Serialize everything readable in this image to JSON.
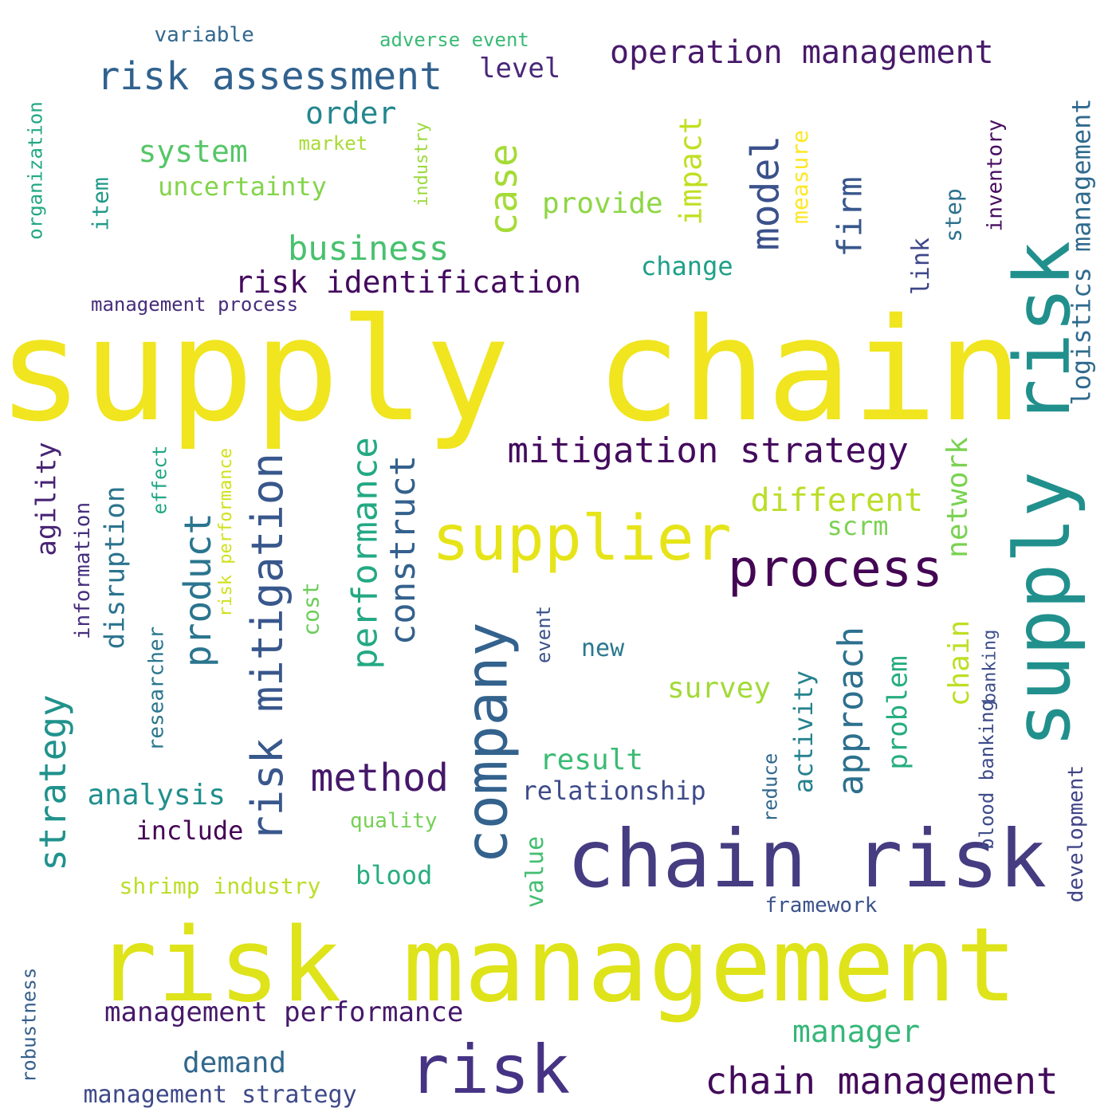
{
  "words": [
    {
      "text": "supply chain",
      "color": "#f0e51f"
    },
    {
      "text": "risk management",
      "color": "#dfe31a"
    },
    {
      "text": "chain risk",
      "color": "#453c81"
    },
    {
      "text": "supply risk",
      "color": "#21908d"
    },
    {
      "text": "risk",
      "color": "#463384"
    },
    {
      "text": "supplier",
      "color": "#e6e419"
    },
    {
      "text": "company",
      "color": "#33628d"
    },
    {
      "text": "process",
      "color": "#440654"
    },
    {
      "text": "risk mitigation",
      "color": "#38578c"
    },
    {
      "text": "mitigation strategy",
      "color": "#440a5e"
    },
    {
      "text": "risk assessment",
      "color": "#31628e"
    },
    {
      "text": "operation management",
      "color": "#48196a"
    },
    {
      "text": "chain management",
      "color": "#430a5a"
    },
    {
      "text": "method",
      "color": "#46186a"
    },
    {
      "text": "strategy",
      "color": "#20928c"
    },
    {
      "text": "product",
      "color": "#2b758e"
    },
    {
      "text": "performance",
      "color": "#23a983"
    },
    {
      "text": "construct",
      "color": "#34618d"
    },
    {
      "text": "case",
      "color": "#a5db36"
    },
    {
      "text": "model",
      "color": "#3b518b"
    },
    {
      "text": "firm",
      "color": "#38578c"
    },
    {
      "text": "approach",
      "color": "#2d708e"
    },
    {
      "text": "business",
      "color": "#48c16e"
    },
    {
      "text": "risk identification",
      "color": "#440a5e"
    },
    {
      "text": "different",
      "color": "#bade28"
    },
    {
      "text": "impact",
      "color": "#c2df23"
    },
    {
      "text": "network",
      "color": "#7ad251"
    },
    {
      "text": "chain",
      "color": "#bddf26"
    },
    {
      "text": "logistics management",
      "color": "#306a8e"
    },
    {
      "text": "manager",
      "color": "#35b779"
    },
    {
      "text": "management performance",
      "color": "#46186a"
    },
    {
      "text": "order",
      "color": "#24878e"
    },
    {
      "text": "system",
      "color": "#56c667"
    },
    {
      "text": "disruption",
      "color": "#2b748e"
    },
    {
      "text": "demand",
      "color": "#31688e"
    },
    {
      "text": "survey",
      "color": "#a2da37"
    },
    {
      "text": "agility",
      "color": "#482575"
    },
    {
      "text": "problem",
      "color": "#27ad81"
    },
    {
      "text": "analysis",
      "color": "#218f8d"
    },
    {
      "text": "result",
      "color": "#3bbb75"
    },
    {
      "text": "provide",
      "color": "#8ed645"
    },
    {
      "text": "activity",
      "color": "#26828e"
    },
    {
      "text": "relationship",
      "color": "#3e4a89"
    },
    {
      "text": "link",
      "color": "#3f4788"
    },
    {
      "text": "level",
      "color": "#482878"
    },
    {
      "text": "change",
      "color": "#1fa088"
    },
    {
      "text": "scrm",
      "color": "#7ad151"
    },
    {
      "text": "management strategy",
      "color": "#3e4989"
    },
    {
      "text": "information",
      "color": "#462f7e"
    },
    {
      "text": "value",
      "color": "#43bf71"
    },
    {
      "text": "blood",
      "color": "#27ad81"
    },
    {
      "text": "uncertainty",
      "color": "#84d44b"
    },
    {
      "text": "development",
      "color": "#414487"
    },
    {
      "text": "include",
      "color": "#440154"
    },
    {
      "text": "item",
      "color": "#1f9a8a"
    },
    {
      "text": "cost",
      "color": "#6ccd5a"
    },
    {
      "text": "step",
      "color": "#2c728e"
    },
    {
      "text": "new",
      "color": "#2a788e"
    },
    {
      "text": "measure",
      "color": "#fde725"
    },
    {
      "text": "organization",
      "color": "#22a884"
    },
    {
      "text": "effect",
      "color": "#21a685"
    },
    {
      "text": "inventory",
      "color": "#470d60"
    },
    {
      "text": "framework",
      "color": "#3b528b"
    },
    {
      "text": "researcher",
      "color": "#2a778e"
    },
    {
      "text": "shrimp industry",
      "color": "#bade28"
    },
    {
      "text": "variable",
      "color": "#31688e"
    },
    {
      "text": "adverse event",
      "color": "#3aba76"
    },
    {
      "text": "management process",
      "color": "#472d7b"
    },
    {
      "text": "quality",
      "color": "#75d054"
    },
    {
      "text": "event",
      "color": "#3b528b"
    },
    {
      "text": "banking",
      "color": "#3d4e8a"
    },
    {
      "text": "reduce",
      "color": "#31688e"
    },
    {
      "text": "blood banking",
      "color": "#3e4c8a"
    },
    {
      "text": "robustness",
      "color": "#35608d"
    },
    {
      "text": "market",
      "color": "#a8db34"
    },
    {
      "text": "industry",
      "color": "#9bd93c"
    },
    {
      "text": "risk performance",
      "color": "#d0e11c"
    }
  ]
}
